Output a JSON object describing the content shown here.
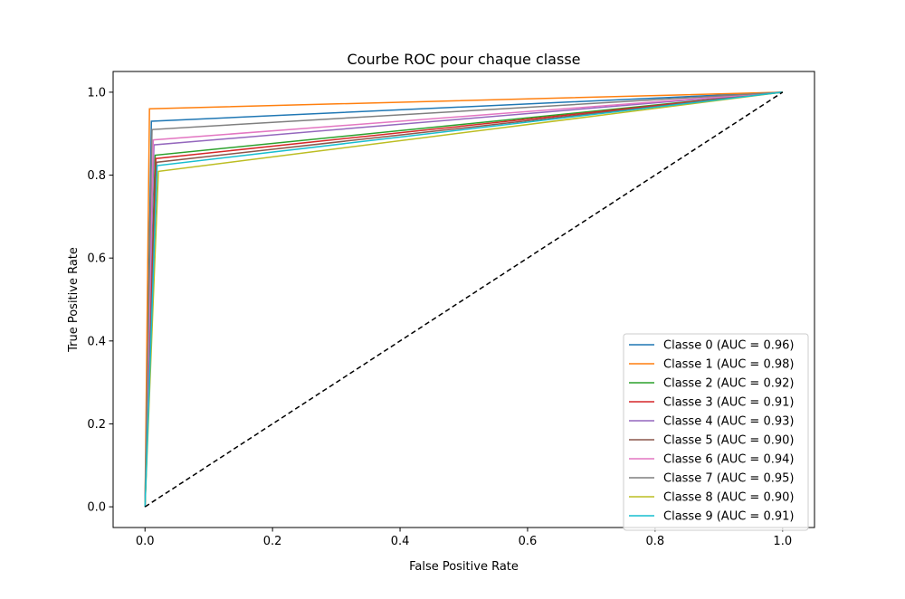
{
  "chart_data": {
    "type": "line",
    "title": "Courbe ROC pour chaque classe",
    "xlabel": "False Positive Rate",
    "ylabel": "True Positive Rate",
    "xlim": [
      -0.05,
      1.05
    ],
    "ylim": [
      -0.05,
      1.05
    ],
    "xticks": [
      {
        "value": 0.0,
        "label": "0.0"
      },
      {
        "value": 0.2,
        "label": "0.2"
      },
      {
        "value": 0.4,
        "label": "0.4"
      },
      {
        "value": 0.6,
        "label": "0.6"
      },
      {
        "value": 0.8,
        "label": "0.8"
      },
      {
        "value": 1.0,
        "label": "1.0"
      }
    ],
    "yticks": [
      {
        "value": 0.0,
        "label": "0.0"
      },
      {
        "value": 0.2,
        "label": "0.2"
      },
      {
        "value": 0.4,
        "label": "0.4"
      },
      {
        "value": 0.6,
        "label": "0.6"
      },
      {
        "value": 0.8,
        "label": "0.8"
      },
      {
        "value": 1.0,
        "label": "1.0"
      }
    ],
    "grid": false,
    "legend_position": "lower right",
    "diagonal": {
      "x": [
        0,
        1
      ],
      "y": [
        0,
        1
      ],
      "color": "#000000",
      "style": "dashed"
    },
    "series": [
      {
        "name": "Classe 0 (AUC = 0.96)",
        "color": "#1f77b4",
        "x": [
          0,
          0.01,
          1
        ],
        "y": [
          0,
          0.93,
          1
        ]
      },
      {
        "name": "Classe 1 (AUC = 0.98)",
        "color": "#ff7f0e",
        "x": [
          0,
          0.007,
          1
        ],
        "y": [
          0,
          0.96,
          1
        ]
      },
      {
        "name": "Classe 2 (AUC = 0.92)",
        "color": "#2ca02c",
        "x": [
          0,
          0.016,
          1
        ],
        "y": [
          0,
          0.848,
          1
        ]
      },
      {
        "name": "Classe 3 (AUC = 0.91)",
        "color": "#d62728",
        "x": [
          0,
          0.017,
          1
        ],
        "y": [
          0,
          0.84,
          1
        ]
      },
      {
        "name": "Classe 4 (AUC = 0.93)",
        "color": "#9467bd",
        "x": [
          0,
          0.014,
          1
        ],
        "y": [
          0,
          0.873,
          1
        ]
      },
      {
        "name": "Classe 5 (AUC = 0.90)",
        "color": "#8c564b",
        "x": [
          0,
          0.018,
          1
        ],
        "y": [
          0,
          0.831,
          1
        ]
      },
      {
        "name": "Classe 6 (AUC = 0.94)",
        "color": "#e377c2",
        "x": [
          0,
          0.013,
          1
        ],
        "y": [
          0,
          0.885,
          1
        ]
      },
      {
        "name": "Classe 7 (AUC = 0.95)",
        "color": "#7f7f7f",
        "x": [
          0,
          0.011,
          1
        ],
        "y": [
          0,
          0.91,
          1
        ]
      },
      {
        "name": "Classe 8 (AUC = 0.90)",
        "color": "#bcbd22",
        "x": [
          0,
          0.021,
          1
        ],
        "y": [
          0,
          0.809,
          1
        ]
      },
      {
        "name": "Classe 9 (AUC = 0.91)",
        "color": "#17becf",
        "x": [
          0,
          0.019,
          1
        ],
        "y": [
          0,
          0.823,
          1
        ]
      }
    ]
  }
}
